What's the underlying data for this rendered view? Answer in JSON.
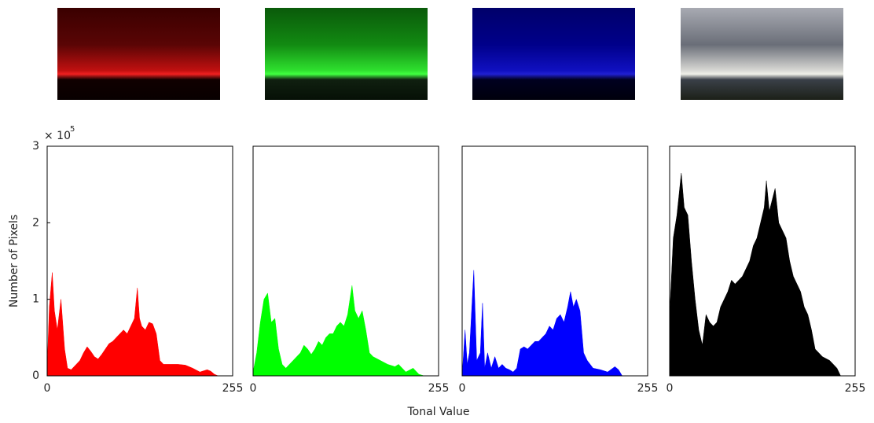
{
  "xlabel": "Tonal Value",
  "ylabel": "Number of Pixels",
  "y_scale_label": "× 10",
  "y_scale_exponent": "5",
  "chart_data": [
    {
      "type": "area",
      "color": "#ff0000",
      "x": [
        0,
        3,
        7,
        10,
        14,
        19,
        24,
        28,
        33,
        40,
        45,
        50,
        55,
        60,
        65,
        70,
        75,
        80,
        85,
        90,
        95,
        100,
        105,
        110,
        115,
        120,
        124,
        127,
        130,
        135,
        140,
        145,
        150,
        155,
        160,
        170,
        180,
        190,
        200,
        210,
        220,
        225,
        230,
        235,
        240,
        255
      ],
      "values": [
        0.1,
        0.9,
        1.35,
        0.85,
        0.6,
        1.0,
        0.35,
        0.1,
        0.08,
        0.15,
        0.2,
        0.3,
        0.38,
        0.32,
        0.25,
        0.22,
        0.28,
        0.35,
        0.42,
        0.45,
        0.5,
        0.55,
        0.6,
        0.55,
        0.65,
        0.75,
        1.15,
        0.75,
        0.65,
        0.6,
        0.7,
        0.68,
        0.55,
        0.2,
        0.15,
        0.15,
        0.15,
        0.14,
        0.1,
        0.05,
        0.08,
        0.06,
        0.02,
        0,
        0,
        0
      ],
      "xlim": [
        0,
        255
      ],
      "xticks": [
        0,
        255
      ],
      "ylim": [
        0,
        3
      ],
      "yticks": [
        0,
        1,
        2,
        3
      ]
    },
    {
      "type": "area",
      "color": "#00ff00",
      "x": [
        0,
        5,
        10,
        15,
        20,
        25,
        30,
        35,
        40,
        45,
        50,
        55,
        60,
        65,
        70,
        75,
        80,
        85,
        90,
        95,
        100,
        105,
        110,
        115,
        120,
        125,
        130,
        136,
        140,
        145,
        150,
        155,
        160,
        165,
        175,
        185,
        195,
        200,
        205,
        210,
        220,
        228,
        235,
        255
      ],
      "values": [
        0.05,
        0.3,
        0.7,
        1.0,
        1.08,
        0.7,
        0.75,
        0.35,
        0.15,
        0.1,
        0.15,
        0.2,
        0.25,
        0.3,
        0.4,
        0.35,
        0.28,
        0.35,
        0.45,
        0.4,
        0.5,
        0.55,
        0.55,
        0.65,
        0.7,
        0.65,
        0.8,
        1.18,
        0.85,
        0.75,
        0.85,
        0.6,
        0.3,
        0.25,
        0.2,
        0.15,
        0.12,
        0.15,
        0.1,
        0.05,
        0.1,
        0.02,
        0,
        0
      ],
      "xlim": [
        0,
        255
      ],
      "xticks": [
        0,
        255
      ],
      "ylim": [
        0,
        3
      ]
    },
    {
      "type": "area",
      "color": "#0000ff",
      "x": [
        0,
        4,
        7,
        10,
        16,
        20,
        25,
        28,
        31,
        35,
        40,
        45,
        50,
        55,
        60,
        65,
        70,
        75,
        80,
        85,
        90,
        95,
        100,
        105,
        110,
        115,
        120,
        125,
        130,
        135,
        140,
        145,
        149,
        153,
        157,
        162,
        167,
        172,
        180,
        190,
        200,
        210,
        215,
        220,
        255
      ],
      "values": [
        0,
        0.6,
        0.15,
        0.3,
        1.38,
        0.2,
        0.3,
        0.95,
        0.1,
        0.3,
        0.1,
        0.25,
        0.1,
        0.15,
        0.1,
        0.08,
        0.05,
        0.1,
        0.35,
        0.38,
        0.35,
        0.4,
        0.45,
        0.45,
        0.5,
        0.55,
        0.65,
        0.6,
        0.75,
        0.8,
        0.7,
        0.9,
        1.1,
        0.9,
        1.0,
        0.85,
        0.3,
        0.2,
        0.1,
        0.08,
        0.05,
        0.12,
        0.08,
        0,
        0
      ],
      "xlim": [
        0,
        255
      ],
      "xticks": [
        0,
        255
      ],
      "ylim": [
        0,
        3
      ]
    },
    {
      "type": "area",
      "color": "#000000",
      "x": [
        0,
        5,
        10,
        16,
        20,
        25,
        30,
        35,
        40,
        45,
        50,
        55,
        60,
        65,
        70,
        75,
        80,
        85,
        90,
        95,
        100,
        105,
        110,
        115,
        120,
        125,
        130,
        133,
        137,
        141,
        145,
        150,
        155,
        160,
        165,
        170,
        175,
        180,
        185,
        190,
        195,
        200,
        210,
        220,
        225,
        230,
        235,
        255
      ],
      "values": [
        0.8,
        1.8,
        2.1,
        2.65,
        2.2,
        2.1,
        1.5,
        1.0,
        0.6,
        0.4,
        0.8,
        0.7,
        0.65,
        0.7,
        0.9,
        1.0,
        1.1,
        1.25,
        1.2,
        1.25,
        1.3,
        1.4,
        1.5,
        1.7,
        1.8,
        2.0,
        2.2,
        2.55,
        2.15,
        2.3,
        2.45,
        2.0,
        1.9,
        1.8,
        1.5,
        1.3,
        1.2,
        1.1,
        0.9,
        0.8,
        0.6,
        0.35,
        0.25,
        0.2,
        0.15,
        0.1,
        0,
        0
      ],
      "xlim": [
        0,
        255
      ],
      "xticks": [
        0,
        255
      ],
      "ylim": [
        0,
        3
      ]
    }
  ]
}
